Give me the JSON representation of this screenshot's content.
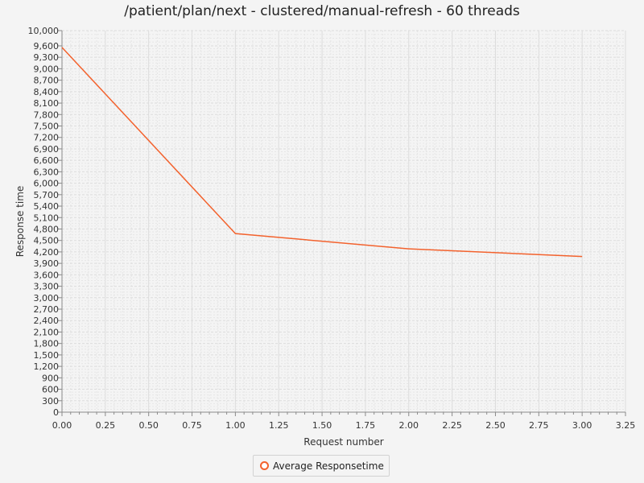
{
  "chart_data": {
    "type": "line",
    "title": "/patient/plan/next - clustered/manual-refresh - 60 threads",
    "xlabel": "Request number",
    "ylabel": "Response time",
    "xlim": [
      0,
      3.25
    ],
    "ylim": [
      0,
      10000
    ],
    "x_ticks": [
      "0.00",
      "0.25",
      "0.50",
      "0.75",
      "1.00",
      "1.25",
      "1.50",
      "1.75",
      "2.00",
      "2.25",
      "2.50",
      "2.75",
      "3.00",
      "3.25"
    ],
    "y_ticks": [
      "0",
      "300",
      "600",
      "900",
      "1,200",
      "1,500",
      "1,800",
      "2,100",
      "2,400",
      "2,700",
      "3,000",
      "3,300",
      "3,600",
      "3,900",
      "4,200",
      "4,500",
      "4,800",
      "5,100",
      "5,400",
      "5,700",
      "6,000",
      "6,300",
      "6,600",
      "6,900",
      "7,200",
      "7,500",
      "7,800",
      "8,100",
      "8,400",
      "8,700",
      "9,000",
      "9,300",
      "9,600",
      "10,000"
    ],
    "series": [
      {
        "name": "Average Responsetime",
        "color": "#f3622d",
        "x": [
          0,
          1,
          2,
          3
        ],
        "y": [
          9560,
          4680,
          4280,
          4080
        ]
      }
    ],
    "grid": true,
    "legend_position": "bottom"
  }
}
